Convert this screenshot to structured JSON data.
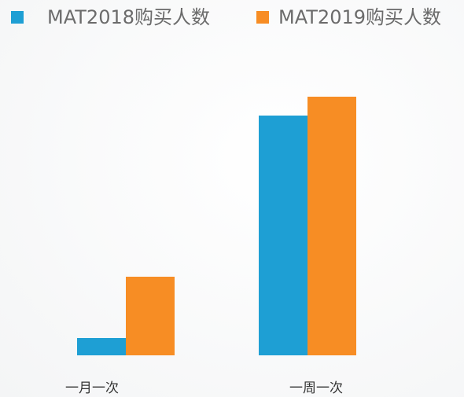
{
  "chart_data": {
    "type": "bar",
    "categories": [
      "一月一次",
      "一周一次"
    ],
    "series": [
      {
        "name": "MAT2018购买人数",
        "color": "#1e9fd4",
        "values": [
          22,
          305
        ]
      },
      {
        "name": "MAT2019购买人数",
        "color": "#f78d24",
        "values": [
          100,
          329
        ]
      }
    ]
  }
}
